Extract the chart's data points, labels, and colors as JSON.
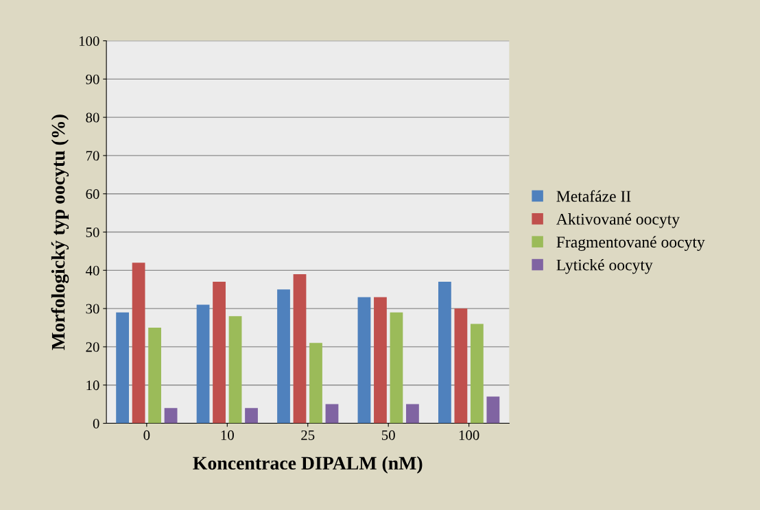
{
  "chart_data": {
    "type": "bar",
    "xlabel": "Koncentrace DIPALM (nM)",
    "ylabel": "Morfologický typ oocytu (%)",
    "categories": [
      "0",
      "10",
      "25",
      "50",
      "100"
    ],
    "series": [
      {
        "name": "Metafáze II",
        "color": "#4f81bd",
        "values": [
          29,
          31,
          35,
          33,
          37
        ]
      },
      {
        "name": "Aktivované oocyty",
        "color": "#c0504d",
        "values": [
          42,
          37,
          39,
          33,
          30
        ]
      },
      {
        "name": "Fragmentované oocyty",
        "color": "#9bbb59",
        "values": [
          25,
          28,
          21,
          29,
          26
        ]
      },
      {
        "name": "Lytické oocyty",
        "color": "#8064a2",
        "values": [
          4,
          4,
          5,
          5,
          7
        ]
      }
    ],
    "ylim": [
      0,
      100
    ],
    "yticks": [
      0,
      10,
      20,
      30,
      40,
      50,
      60,
      70,
      80,
      90,
      100
    ],
    "grid": "y",
    "legend": "right"
  }
}
